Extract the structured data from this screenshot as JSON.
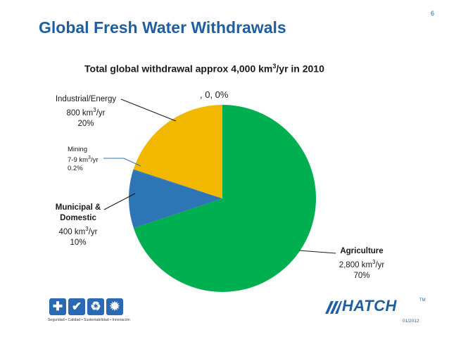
{
  "slide": {
    "title": "Global Fresh Water Withdrawals",
    "page_number": "6",
    "date": "01/2012"
  },
  "subtitle": {
    "prefix": "Total global withdrawal approx 4,000 km",
    "sup": "3",
    "suffix": "/yr in 2010"
  },
  "chart_data": {
    "type": "pie",
    "title": "Total global withdrawal approx 4,000 km3/yr in 2010",
    "unit": "km3/yr",
    "start_angle_deg": 0,
    "direction": "clockwise",
    "slices": [
      {
        "name": "Agriculture",
        "value": 2800,
        "value_label": "2,800 km",
        "unit_suffix": "/yr",
        "percent": 70,
        "percent_label": "70%",
        "color": "#00b050"
      },
      {
        "name": "Municipal & Domestic",
        "value": 400,
        "value_label": "400 km",
        "unit_suffix": "/yr",
        "percent": 10,
        "percent_label": "10%",
        "color": "#2e75b6"
      },
      {
        "name": "Mining",
        "value": 8,
        "value_label": "7-9 km",
        "unit_suffix": "/yr",
        "percent": 0.2,
        "percent_label": "0.2%",
        "color": "#2e75b6"
      },
      {
        "name": "Industrial/Energy",
        "value": 800,
        "value_label": "800 km",
        "unit_suffix": "/yr",
        "percent": 20,
        "percent_label": "20%",
        "color": "#f2b800"
      },
      {
        "name": "",
        "value": 0,
        "percent": 0,
        "label": ", 0, 0%"
      }
    ]
  },
  "labels": {
    "agriculture": {
      "name": "Agriculture",
      "value": "2,800 km",
      "sup": "3",
      "unit": "/yr",
      "pct": "70%"
    },
    "municipal": {
      "name_line1": "Municipal &",
      "name_line2": "Domestic",
      "value": "400 km",
      "sup": "3",
      "unit": "/yr",
      "pct": "10%"
    },
    "mining": {
      "name": "Mining",
      "value": "7-9 km",
      "sup": "3",
      "unit": "/yr",
      "pct": "0.2%"
    },
    "industrial": {
      "name": "Industrial/Energy",
      "value": "800 km",
      "sup": "3",
      "unit": "/yr",
      "pct": "20%"
    },
    "zero": ", 0, 0%"
  },
  "footer": {
    "tagline": "Seguridad • Calidad • Sustentabilidad • Innovación",
    "icons": [
      "plus-icon",
      "check-icon",
      "recycle-icon",
      "lightbulb-icon"
    ],
    "icon_glyphs": [
      "✚",
      "✔",
      "♻",
      "✹"
    ],
    "logo_text": "HATCH",
    "logo_tm": "TM"
  }
}
